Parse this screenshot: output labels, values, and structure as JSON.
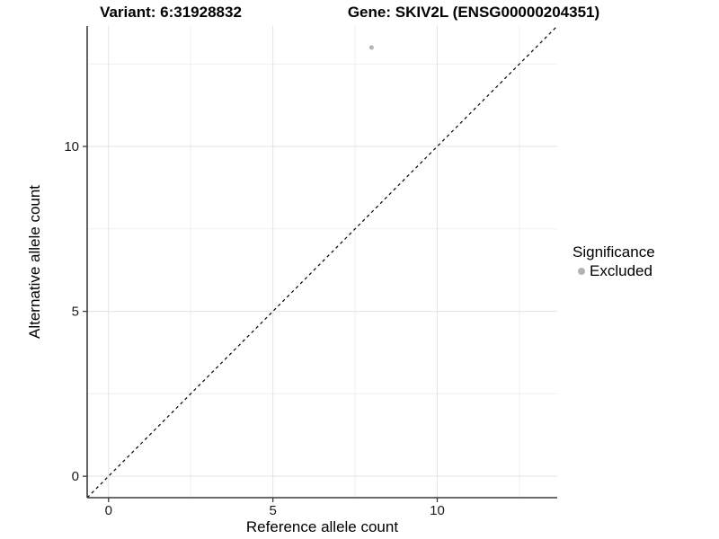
{
  "chart_data": {
    "type": "scatter",
    "titles": {
      "left": "Variant: 6:31928832",
      "right": "Gene: SKIV2L (ENSG00000204351)"
    },
    "xlabel": "Reference allele count",
    "ylabel": "Alternative allele count",
    "xlim": [
      -0.65,
      13.65
    ],
    "ylim": [
      -0.65,
      13.65
    ],
    "x_ticks": [
      0,
      5,
      10
    ],
    "y_ticks": [
      0,
      5,
      10
    ],
    "grid_major_x": [
      0,
      5,
      10
    ],
    "grid_major_y": [
      0,
      5,
      10
    ],
    "grid_minor_x": [
      2.5,
      7.5,
      12.5
    ],
    "grid_minor_y": [
      2.5,
      7.5,
      12.5
    ],
    "identity_line": {
      "style": "dashed",
      "slope": 1,
      "intercept": 0,
      "color": "#000000"
    },
    "series": [
      {
        "name": "Excluded",
        "color": "#b3b3b3",
        "points": [
          {
            "x": 8,
            "y": 13
          }
        ]
      }
    ],
    "legend": {
      "position": "right",
      "title": "Significance",
      "items": [
        {
          "label": "Excluded",
          "color": "#b3b3b3"
        }
      ]
    },
    "colors": {
      "axis_line": "#3c3c3c",
      "tick_mark": "#3c3c3c",
      "tick_label": "#1a1a1a",
      "axis_title": "#000000",
      "grid_major": "#e3e3e3",
      "grid_minor": "#efefef",
      "background": "#ffffff"
    }
  }
}
